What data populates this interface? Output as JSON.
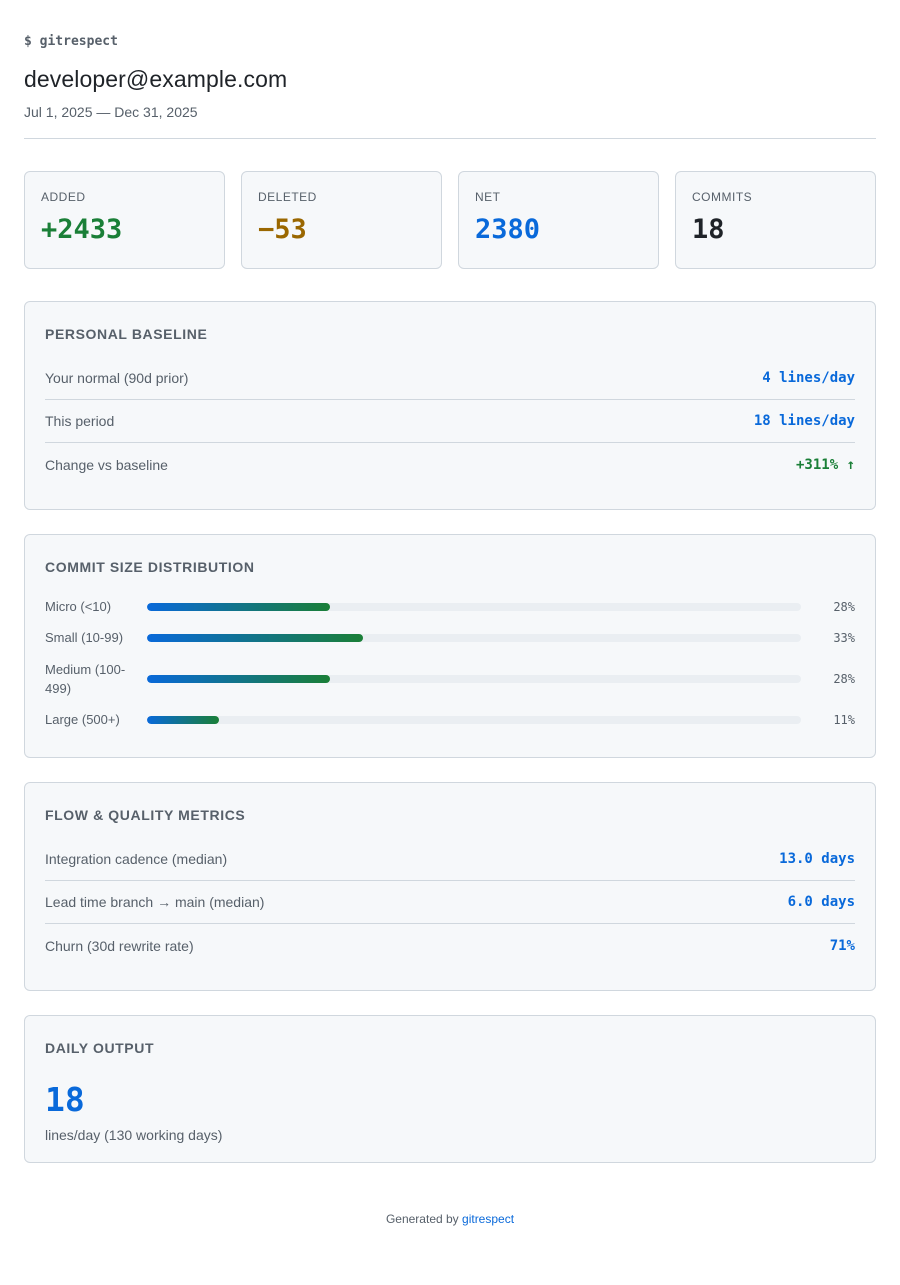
{
  "header": {
    "prompt": "$ gitrespect",
    "title": "developer@example.com",
    "date_range": "Jul 1, 2025 — Dec 31, 2025"
  },
  "stats": [
    {
      "label": "ADDED",
      "value": "+2433",
      "color": "#1a7f37"
    },
    {
      "label": "DELETED",
      "value": "−53",
      "color": "#9a6700"
    },
    {
      "label": "NET",
      "value": "2380",
      "color": "#0969da"
    },
    {
      "label": "COMMITS",
      "value": "18",
      "color": "#1f2328"
    }
  ],
  "baseline": {
    "title": "PERSONAL BASELINE",
    "rows": [
      {
        "label": "Your normal (90d prior)",
        "value": "4 lines/day"
      },
      {
        "label": "This period",
        "value": "18 lines/day"
      },
      {
        "label": "Change vs baseline",
        "value": "+311% ↑"
      }
    ]
  },
  "distribution": {
    "title": "COMMIT SIZE DISTRIBUTION",
    "bars": [
      {
        "label": "Micro (<10)",
        "percent": 28,
        "percent_label": "28%"
      },
      {
        "label": "Small (10-99)",
        "percent": 33,
        "percent_label": "33%"
      },
      {
        "label": "Medium (100-499)",
        "percent": 28,
        "percent_label": "28%"
      },
      {
        "label": "Large (500+)",
        "percent": 11,
        "percent_label": "11%"
      }
    ]
  },
  "flow": {
    "title": "FLOW & QUALITY METRICS",
    "rows": [
      {
        "label": "Integration cadence (median)",
        "value": "13.0 days"
      },
      {
        "label": "Lead time branch → main (median)",
        "value": "6.0 days"
      },
      {
        "label": "Churn (30d rewrite rate)",
        "value": "71%"
      }
    ]
  },
  "daily": {
    "title": "DAILY OUTPUT",
    "value": "18",
    "subtitle": "lines/day (130 working days)"
  },
  "footer": {
    "prefix": "Generated by",
    "link": "gitrespect"
  },
  "colors": {
    "accent": "#0969da",
    "positive": "#1a7f37",
    "warning": "#9a6700"
  }
}
